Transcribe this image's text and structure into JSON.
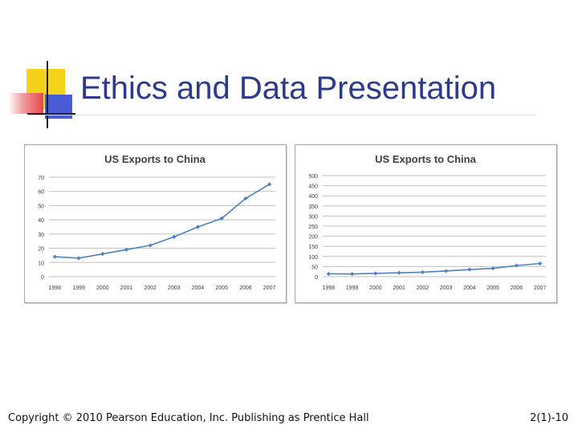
{
  "slide": {
    "title": "Ethics and Data Presentation",
    "footer_left": "Copyright © 2010 Pearson Education, Inc.  Publishing as Prentice Hall",
    "footer_right": "2(1)-10",
    "colors": {
      "title": "#2b3a8c",
      "deco_yellow": "#f5d21a",
      "deco_red": "#e8474b",
      "deco_blue": "#4a5bd6",
      "series": "#4f81bd"
    }
  },
  "chart_data": [
    {
      "type": "line",
      "title": "US Exports to China",
      "categories": [
        "1998",
        "1999",
        "2000",
        "2001",
        "2002",
        "2003",
        "2004",
        "2005",
        "2006",
        "2007"
      ],
      "series": [
        {
          "name": "US Exports to China",
          "values": [
            14,
            13,
            16,
            19,
            22,
            28,
            35,
            41,
            55,
            65
          ]
        }
      ],
      "ylim": [
        0,
        70
      ],
      "yticks": [
        0,
        10,
        20,
        30,
        40,
        50,
        60,
        70
      ],
      "xlabel": "",
      "ylabel": "",
      "grid": true
    },
    {
      "type": "line",
      "title": "US Exports to China",
      "categories": [
        "1998",
        "1999",
        "2000",
        "2001",
        "2002",
        "2003",
        "2004",
        "2005",
        "2006",
        "2007"
      ],
      "series": [
        {
          "name": "US Exports to China",
          "values": [
            14,
            13,
            16,
            19,
            22,
            28,
            35,
            41,
            55,
            65
          ]
        }
      ],
      "ylim": [
        0,
        500
      ],
      "yticks": [
        0,
        50,
        100,
        150,
        200,
        250,
        300,
        350,
        400,
        450,
        500
      ],
      "xlabel": "",
      "ylabel": "",
      "grid": true
    }
  ]
}
